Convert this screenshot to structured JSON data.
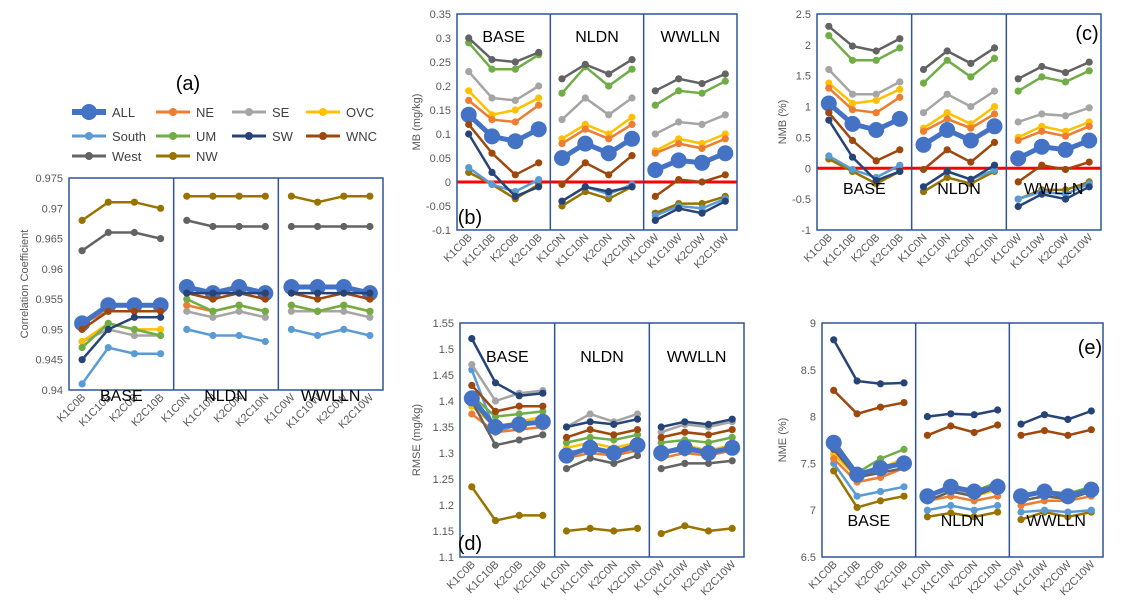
{
  "figure": {
    "legend": {
      "entries": [
        {
          "name": "ALL",
          "color": "#4472C4"
        },
        {
          "name": "NE",
          "color": "#ED7D31"
        },
        {
          "name": "SE",
          "color": "#A5A5A5"
        },
        {
          "name": "OVC",
          "color": "#FFC000"
        },
        {
          "name": "South",
          "color": "#5B9BD5"
        },
        {
          "name": "UM",
          "color": "#70AD47"
        },
        {
          "name": "SW",
          "color": "#264478"
        },
        {
          "name": "WNC",
          "color": "#9E480E"
        },
        {
          "name": "West",
          "color": "#636363"
        },
        {
          "name": "NW",
          "color": "#997300"
        }
      ]
    }
  },
  "chart_data": [
    {
      "id": "a",
      "type": "line",
      "panel_label": "(a)",
      "ylabel": "Correlation Coefficient",
      "ylim": [
        0.94,
        0.975
      ],
      "yticks": [
        0.94,
        0.945,
        0.95,
        0.955,
        0.96,
        0.965,
        0.97,
        0.975
      ],
      "ytick_labels": [
        "0.94",
        "0.945",
        "0.95",
        "0.955",
        "0.96",
        "0.965",
        "0.97",
        "0.975"
      ],
      "categories": [
        "K1C0B",
        "K1C10B",
        "K2C0B",
        "K2C10B",
        "K1C0N",
        "K1C10N",
        "K2C0N",
        "K2C10N",
        "K1C0W",
        "K1C10W",
        "K2C0W",
        "K2C10W"
      ],
      "group_labels": [
        "BASE",
        "NLDN",
        "WWLLN"
      ],
      "series": [
        {
          "name": "ALL",
          "values": [
            0.951,
            0.954,
            0.954,
            0.954,
            0.957,
            0.956,
            0.957,
            0.956,
            0.957,
            0.957,
            0.957,
            0.956
          ]
        },
        {
          "name": "NE",
          "values": [
            0.951,
            0.953,
            0.953,
            0.953,
            0.954,
            0.953,
            0.954,
            0.953,
            0.954,
            0.953,
            0.954,
            0.953
          ]
        },
        {
          "name": "SE",
          "values": [
            0.948,
            0.95,
            0.949,
            0.949,
            0.953,
            0.952,
            0.953,
            0.952,
            0.953,
            0.953,
            0.953,
            0.952
          ]
        },
        {
          "name": "OVC",
          "values": [
            0.948,
            0.951,
            0.95,
            0.95,
            0.954,
            0.953,
            0.954,
            0.953,
            0.954,
            0.953,
            0.954,
            0.953
          ]
        },
        {
          "name": "South",
          "values": [
            0.941,
            0.947,
            0.946,
            0.946,
            0.95,
            0.949,
            0.949,
            0.948,
            0.95,
            0.949,
            0.95,
            0.949
          ]
        },
        {
          "name": "UM",
          "values": [
            0.947,
            0.951,
            0.95,
            0.949,
            0.955,
            0.953,
            0.954,
            0.953,
            0.954,
            0.953,
            0.954,
            0.953
          ]
        },
        {
          "name": "SW",
          "values": [
            0.945,
            0.95,
            0.952,
            0.952,
            0.956,
            0.956,
            0.956,
            0.956,
            0.956,
            0.956,
            0.956,
            0.956
          ]
        },
        {
          "name": "WNC",
          "values": [
            0.95,
            0.953,
            0.953,
            0.953,
            0.956,
            0.955,
            0.956,
            0.955,
            0.956,
            0.955,
            0.956,
            0.955
          ]
        },
        {
          "name": "West",
          "values": [
            0.963,
            0.966,
            0.966,
            0.965,
            0.968,
            0.967,
            0.967,
            0.967,
            0.967,
            0.967,
            0.967,
            0.967
          ]
        },
        {
          "name": "NW",
          "values": [
            0.968,
            0.971,
            0.971,
            0.97,
            0.972,
            0.972,
            0.972,
            0.972,
            0.972,
            0.971,
            0.972,
            0.972
          ]
        }
      ]
    },
    {
      "id": "b",
      "type": "line",
      "panel_label": "(b)",
      "ylabel": "MB (mg/kg)",
      "ylim": [
        -0.1,
        0.35
      ],
      "yticks": [
        -0.1,
        -0.05,
        0,
        0.05,
        0.1,
        0.15,
        0.2,
        0.25,
        0.3,
        0.35
      ],
      "ytick_labels": [
        "-0.1",
        "-0.05",
        "0",
        "0.05",
        "0.1",
        "0.15",
        "0.2",
        "0.25",
        "0.3",
        "0.35"
      ],
      "reference_line": 0,
      "categories": [
        "K1C0B",
        "K1C10B",
        "K2C0B",
        "K2C10B",
        "K1C0N",
        "K1C10N",
        "K2C0N",
        "K2C10N",
        "K1C0W",
        "K1C10W",
        "K2C0W",
        "K2C10W"
      ],
      "group_labels": [
        "BASE",
        "NLDN",
        "WWLLN"
      ],
      "series": [
        {
          "name": "ALL",
          "values": [
            0.14,
            0.095,
            0.085,
            0.11,
            0.05,
            0.08,
            0.06,
            0.09,
            0.025,
            0.045,
            0.04,
            0.06
          ]
        },
        {
          "name": "NE",
          "values": [
            0.17,
            0.13,
            0.125,
            0.16,
            0.08,
            0.11,
            0.09,
            0.12,
            0.06,
            0.08,
            0.07,
            0.09
          ]
        },
        {
          "name": "SE",
          "values": [
            0.23,
            0.175,
            0.17,
            0.2,
            0.13,
            0.175,
            0.14,
            0.175,
            0.1,
            0.125,
            0.12,
            0.14
          ]
        },
        {
          "name": "OVC",
          "values": [
            0.19,
            0.14,
            0.15,
            0.175,
            0.09,
            0.12,
            0.1,
            0.135,
            0.065,
            0.09,
            0.08,
            0.1
          ]
        },
        {
          "name": "South",
          "values": [
            0.03,
            -0.005,
            -0.02,
            0.005,
            -0.04,
            -0.01,
            -0.025,
            -0.005,
            -0.07,
            -0.05,
            -0.055,
            -0.035
          ]
        },
        {
          "name": "UM",
          "values": [
            0.29,
            0.235,
            0.235,
            0.265,
            0.185,
            0.24,
            0.2,
            0.235,
            0.16,
            0.19,
            0.185,
            0.21
          ]
        },
        {
          "name": "SW",
          "values": [
            0.1,
            0.02,
            -0.03,
            -0.01,
            -0.04,
            -0.01,
            -0.02,
            -0.01,
            -0.08,
            -0.055,
            -0.065,
            -0.04
          ]
        },
        {
          "name": "WNC",
          "values": [
            0.12,
            0.06,
            0.015,
            0.04,
            -0.005,
            0.04,
            0.015,
            0.055,
            -0.03,
            0.005,
            0.0,
            0.015
          ]
        },
        {
          "name": "West",
          "values": [
            0.3,
            0.255,
            0.25,
            0.27,
            0.215,
            0.245,
            0.225,
            0.255,
            0.19,
            0.215,
            0.205,
            0.225
          ]
        },
        {
          "name": "NW",
          "values": [
            0.02,
            -0.005,
            -0.035,
            -0.005,
            -0.05,
            -0.02,
            -0.035,
            -0.01,
            -0.065,
            -0.045,
            -0.045,
            -0.03
          ]
        }
      ]
    },
    {
      "id": "c",
      "type": "line",
      "panel_label": "(c)",
      "ylabel": "NMB (%)",
      "ylim": [
        -1,
        2.5
      ],
      "yticks": [
        -1,
        -0.5,
        0,
        0.5,
        1,
        1.5,
        2,
        2.5
      ],
      "ytick_labels": [
        "-1",
        "-0.5",
        "0",
        "0.5",
        "1",
        "1.5",
        "2",
        "2.5"
      ],
      "reference_line": 0,
      "categories": [
        "K1C0B",
        "K1C10B",
        "K2C0B",
        "K2C10B",
        "K1C0N",
        "K1C10N",
        "K2C0N",
        "K2C10N",
        "K1C0W",
        "K1C10W",
        "K2C0W",
        "K2C10W"
      ],
      "group_labels": [
        "BASE",
        "NLDN",
        "WWLLN"
      ],
      "series": [
        {
          "name": "ALL",
          "values": [
            1.05,
            0.72,
            0.62,
            0.8,
            0.38,
            0.62,
            0.45,
            0.68,
            0.16,
            0.35,
            0.3,
            0.45
          ]
        },
        {
          "name": "NE",
          "values": [
            1.3,
            0.95,
            0.9,
            1.15,
            0.6,
            0.8,
            0.65,
            0.88,
            0.45,
            0.6,
            0.52,
            0.68
          ]
        },
        {
          "name": "SE",
          "values": [
            1.6,
            1.2,
            1.2,
            1.4,
            0.9,
            1.2,
            1.0,
            1.25,
            0.75,
            0.88,
            0.85,
            0.98
          ]
        },
        {
          "name": "OVC",
          "values": [
            1.38,
            1.05,
            1.1,
            1.28,
            0.65,
            0.9,
            0.72,
            1.0,
            0.5,
            0.68,
            0.6,
            0.75
          ]
        },
        {
          "name": "South",
          "values": [
            0.2,
            -0.02,
            -0.15,
            0.05,
            -0.3,
            -0.05,
            -0.18,
            -0.03,
            -0.5,
            -0.38,
            -0.42,
            -0.25
          ]
        },
        {
          "name": "UM",
          "values": [
            2.15,
            1.75,
            1.75,
            1.95,
            1.38,
            1.75,
            1.48,
            1.78,
            1.25,
            1.48,
            1.4,
            1.58
          ]
        },
        {
          "name": "SW",
          "values": [
            0.78,
            0.18,
            -0.2,
            -0.05,
            -0.3,
            -0.05,
            -0.18,
            0.05,
            -0.62,
            -0.42,
            -0.5,
            -0.3
          ]
        },
        {
          "name": "WNC",
          "values": [
            0.9,
            0.45,
            0.12,
            0.3,
            -0.02,
            0.3,
            0.1,
            0.42,
            -0.22,
            0.05,
            -0.02,
            0.1
          ]
        },
        {
          "name": "West",
          "values": [
            2.3,
            1.98,
            1.9,
            2.1,
            1.6,
            1.9,
            1.7,
            1.95,
            1.45,
            1.65,
            1.55,
            1.72
          ]
        },
        {
          "name": "NW",
          "values": [
            0.15,
            -0.05,
            -0.25,
            -0.05,
            -0.38,
            -0.15,
            -0.25,
            -0.05,
            -0.5,
            -0.35,
            -0.35,
            -0.22
          ]
        }
      ]
    },
    {
      "id": "d",
      "type": "line",
      "panel_label": "(d)",
      "ylabel": "RMSE (mg/kg)",
      "ylim": [
        1.1,
        1.55
      ],
      "yticks": [
        1.1,
        1.15,
        1.2,
        1.25,
        1.3,
        1.35,
        1.4,
        1.45,
        1.5,
        1.55
      ],
      "ytick_labels": [
        "1.1",
        "1.15",
        "1.2",
        "1.25",
        "1.3",
        "1.35",
        "1.4",
        "1.45",
        "1.5",
        "1.55"
      ],
      "categories": [
        "K1C0B",
        "K1C10B",
        "K2C0B",
        "K2C10B",
        "K1C0N",
        "K1C10N",
        "K2C0N",
        "K2C10N",
        "K1C0W",
        "K1C10W",
        "K2C0W",
        "K2C10W"
      ],
      "group_labels": [
        "BASE",
        "NLDN",
        "WWLLN"
      ],
      "series": [
        {
          "name": "ALL",
          "values": [
            1.405,
            1.35,
            1.355,
            1.36,
            1.295,
            1.31,
            1.3,
            1.315,
            1.3,
            1.31,
            1.3,
            1.31
          ]
        },
        {
          "name": "NE",
          "values": [
            1.375,
            1.34,
            1.345,
            1.35,
            1.29,
            1.3,
            1.295,
            1.305,
            1.29,
            1.3,
            1.295,
            1.305
          ]
        },
        {
          "name": "SE",
          "values": [
            1.47,
            1.4,
            1.415,
            1.42,
            1.35,
            1.375,
            1.36,
            1.375,
            1.34,
            1.355,
            1.35,
            1.36
          ]
        },
        {
          "name": "OVC",
          "values": [
            1.39,
            1.35,
            1.36,
            1.37,
            1.31,
            1.32,
            1.31,
            1.32,
            1.3,
            1.315,
            1.305,
            1.315
          ]
        },
        {
          "name": "South",
          "values": [
            1.46,
            1.34,
            1.355,
            1.36,
            1.3,
            1.31,
            1.3,
            1.31,
            1.3,
            1.305,
            1.3,
            1.31
          ]
        },
        {
          "name": "UM",
          "values": [
            1.41,
            1.37,
            1.375,
            1.38,
            1.32,
            1.33,
            1.325,
            1.335,
            1.32,
            1.325,
            1.32,
            1.33
          ]
        },
        {
          "name": "SW",
          "values": [
            1.52,
            1.435,
            1.41,
            1.415,
            1.35,
            1.36,
            1.355,
            1.365,
            1.35,
            1.36,
            1.355,
            1.365
          ]
        },
        {
          "name": "WNC",
          "values": [
            1.43,
            1.38,
            1.39,
            1.39,
            1.33,
            1.345,
            1.335,
            1.345,
            1.33,
            1.34,
            1.335,
            1.345
          ]
        },
        {
          "name": "West",
          "values": [
            1.4,
            1.315,
            1.325,
            1.335,
            1.27,
            1.29,
            1.28,
            1.295,
            1.27,
            1.28,
            1.28,
            1.285
          ]
        },
        {
          "name": "NW",
          "values": [
            1.235,
            1.17,
            1.18,
            1.18,
            1.15,
            1.155,
            1.15,
            1.155,
            1.145,
            1.16,
            1.15,
            1.155
          ]
        }
      ]
    },
    {
      "id": "e",
      "type": "line",
      "panel_label": "(e)",
      "ylabel": "NME (%)",
      "ylim": [
        6.5,
        9
      ],
      "yticks": [
        6.5,
        7,
        7.5,
        8,
        8.5,
        9
      ],
      "ytick_labels": [
        "6.5",
        "7",
        "7.5",
        "8",
        "8.5",
        "9"
      ],
      "categories": [
        "K1C0B",
        "K1C10B",
        "K2C0B",
        "K2C10B",
        "K1C0N",
        "K1C10N",
        "K2C0N",
        "K2C10N",
        "K1C0W",
        "K1C10W",
        "K2C0W",
        "K2C10W"
      ],
      "group_labels": [
        "BASE",
        "NLDN",
        "WWLLN"
      ],
      "series": [
        {
          "name": "ALL",
          "values": [
            7.72,
            7.38,
            7.45,
            7.5,
            7.15,
            7.25,
            7.2,
            7.25,
            7.15,
            7.2,
            7.15,
            7.22
          ]
        },
        {
          "name": "NE",
          "values": [
            7.55,
            7.3,
            7.35,
            7.45,
            7.1,
            7.15,
            7.1,
            7.15,
            7.05,
            7.1,
            7.1,
            7.15
          ]
        },
        {
          "name": "SE",
          "values": [
            7.68,
            7.35,
            7.42,
            7.5,
            7.15,
            7.22,
            7.18,
            7.25,
            7.15,
            7.2,
            7.18,
            7.22
          ]
        },
        {
          "name": "OVC",
          "values": [
            7.6,
            7.35,
            7.45,
            7.55,
            7.1,
            7.2,
            7.15,
            7.22,
            7.1,
            7.15,
            7.12,
            7.2
          ]
        },
        {
          "name": "South",
          "values": [
            7.5,
            7.15,
            7.2,
            7.25,
            7.0,
            7.05,
            7.0,
            7.05,
            6.98,
            7.0,
            6.98,
            7.0
          ]
        },
        {
          "name": "UM",
          "values": [
            7.75,
            7.4,
            7.55,
            7.65,
            7.15,
            7.25,
            7.2,
            7.3,
            7.15,
            7.2,
            7.18,
            7.25
          ]
        },
        {
          "name": "SW",
          "values": [
            8.82,
            8.38,
            8.35,
            8.36,
            8.0,
            8.03,
            8.02,
            8.07,
            7.92,
            8.02,
            7.97,
            8.06
          ]
        },
        {
          "name": "WNC",
          "values": [
            8.28,
            8.03,
            8.1,
            8.15,
            7.8,
            7.9,
            7.83,
            7.91,
            7.8,
            7.85,
            7.8,
            7.86
          ]
        },
        {
          "name": "West",
          "values": [
            7.65,
            7.35,
            7.4,
            7.45,
            7.1,
            7.2,
            7.15,
            7.25,
            7.1,
            7.15,
            7.12,
            7.2
          ]
        },
        {
          "name": "NW",
          "values": [
            7.42,
            7.03,
            7.1,
            7.15,
            6.93,
            6.97,
            6.93,
            6.98,
            6.9,
            6.98,
            6.93,
            6.98
          ]
        }
      ]
    }
  ]
}
